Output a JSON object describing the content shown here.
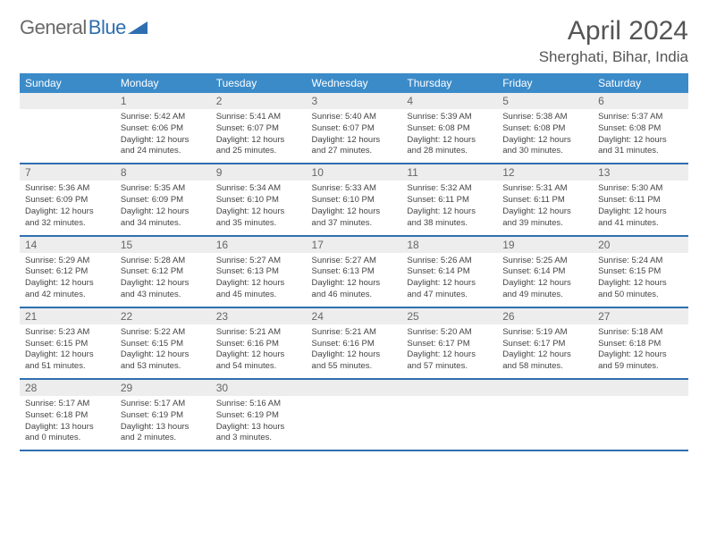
{
  "brand": {
    "part1": "General",
    "part2": "Blue",
    "triangle_color": "#2f6fb0"
  },
  "colors": {
    "header_bg": "#3b8bc9",
    "header_text": "#ffffff",
    "row_divider": "#2f6fb0",
    "daynum_bg": "#ededed",
    "daynum_text": "#666666",
    "body_text": "#444444",
    "title_text": "#555555",
    "page_bg": "#ffffff"
  },
  "title": "April 2024",
  "location": "Sherghati, Bihar, India",
  "weekdays": [
    "Sunday",
    "Monday",
    "Tuesday",
    "Wednesday",
    "Thursday",
    "Friday",
    "Saturday"
  ],
  "weeks": [
    [
      {
        "n": "",
        "lines": []
      },
      {
        "n": "1",
        "lines": [
          "Sunrise: 5:42 AM",
          "Sunset: 6:06 PM",
          "Daylight: 12 hours and 24 minutes."
        ]
      },
      {
        "n": "2",
        "lines": [
          "Sunrise: 5:41 AM",
          "Sunset: 6:07 PM",
          "Daylight: 12 hours and 25 minutes."
        ]
      },
      {
        "n": "3",
        "lines": [
          "Sunrise: 5:40 AM",
          "Sunset: 6:07 PM",
          "Daylight: 12 hours and 27 minutes."
        ]
      },
      {
        "n": "4",
        "lines": [
          "Sunrise: 5:39 AM",
          "Sunset: 6:08 PM",
          "Daylight: 12 hours and 28 minutes."
        ]
      },
      {
        "n": "5",
        "lines": [
          "Sunrise: 5:38 AM",
          "Sunset: 6:08 PM",
          "Daylight: 12 hours and 30 minutes."
        ]
      },
      {
        "n": "6",
        "lines": [
          "Sunrise: 5:37 AM",
          "Sunset: 6:08 PM",
          "Daylight: 12 hours and 31 minutes."
        ]
      }
    ],
    [
      {
        "n": "7",
        "lines": [
          "Sunrise: 5:36 AM",
          "Sunset: 6:09 PM",
          "Daylight: 12 hours and 32 minutes."
        ]
      },
      {
        "n": "8",
        "lines": [
          "Sunrise: 5:35 AM",
          "Sunset: 6:09 PM",
          "Daylight: 12 hours and 34 minutes."
        ]
      },
      {
        "n": "9",
        "lines": [
          "Sunrise: 5:34 AM",
          "Sunset: 6:10 PM",
          "Daylight: 12 hours and 35 minutes."
        ]
      },
      {
        "n": "10",
        "lines": [
          "Sunrise: 5:33 AM",
          "Sunset: 6:10 PM",
          "Daylight: 12 hours and 37 minutes."
        ]
      },
      {
        "n": "11",
        "lines": [
          "Sunrise: 5:32 AM",
          "Sunset: 6:11 PM",
          "Daylight: 12 hours and 38 minutes."
        ]
      },
      {
        "n": "12",
        "lines": [
          "Sunrise: 5:31 AM",
          "Sunset: 6:11 PM",
          "Daylight: 12 hours and 39 minutes."
        ]
      },
      {
        "n": "13",
        "lines": [
          "Sunrise: 5:30 AM",
          "Sunset: 6:11 PM",
          "Daylight: 12 hours and 41 minutes."
        ]
      }
    ],
    [
      {
        "n": "14",
        "lines": [
          "Sunrise: 5:29 AM",
          "Sunset: 6:12 PM",
          "Daylight: 12 hours and 42 minutes."
        ]
      },
      {
        "n": "15",
        "lines": [
          "Sunrise: 5:28 AM",
          "Sunset: 6:12 PM",
          "Daylight: 12 hours and 43 minutes."
        ]
      },
      {
        "n": "16",
        "lines": [
          "Sunrise: 5:27 AM",
          "Sunset: 6:13 PM",
          "Daylight: 12 hours and 45 minutes."
        ]
      },
      {
        "n": "17",
        "lines": [
          "Sunrise: 5:27 AM",
          "Sunset: 6:13 PM",
          "Daylight: 12 hours and 46 minutes."
        ]
      },
      {
        "n": "18",
        "lines": [
          "Sunrise: 5:26 AM",
          "Sunset: 6:14 PM",
          "Daylight: 12 hours and 47 minutes."
        ]
      },
      {
        "n": "19",
        "lines": [
          "Sunrise: 5:25 AM",
          "Sunset: 6:14 PM",
          "Daylight: 12 hours and 49 minutes."
        ]
      },
      {
        "n": "20",
        "lines": [
          "Sunrise: 5:24 AM",
          "Sunset: 6:15 PM",
          "Daylight: 12 hours and 50 minutes."
        ]
      }
    ],
    [
      {
        "n": "21",
        "lines": [
          "Sunrise: 5:23 AM",
          "Sunset: 6:15 PM",
          "Daylight: 12 hours and 51 minutes."
        ]
      },
      {
        "n": "22",
        "lines": [
          "Sunrise: 5:22 AM",
          "Sunset: 6:15 PM",
          "Daylight: 12 hours and 53 minutes."
        ]
      },
      {
        "n": "23",
        "lines": [
          "Sunrise: 5:21 AM",
          "Sunset: 6:16 PM",
          "Daylight: 12 hours and 54 minutes."
        ]
      },
      {
        "n": "24",
        "lines": [
          "Sunrise: 5:21 AM",
          "Sunset: 6:16 PM",
          "Daylight: 12 hours and 55 minutes."
        ]
      },
      {
        "n": "25",
        "lines": [
          "Sunrise: 5:20 AM",
          "Sunset: 6:17 PM",
          "Daylight: 12 hours and 57 minutes."
        ]
      },
      {
        "n": "26",
        "lines": [
          "Sunrise: 5:19 AM",
          "Sunset: 6:17 PM",
          "Daylight: 12 hours and 58 minutes."
        ]
      },
      {
        "n": "27",
        "lines": [
          "Sunrise: 5:18 AM",
          "Sunset: 6:18 PM",
          "Daylight: 12 hours and 59 minutes."
        ]
      }
    ],
    [
      {
        "n": "28",
        "lines": [
          "Sunrise: 5:17 AM",
          "Sunset: 6:18 PM",
          "Daylight: 13 hours and 0 minutes."
        ]
      },
      {
        "n": "29",
        "lines": [
          "Sunrise: 5:17 AM",
          "Sunset: 6:19 PM",
          "Daylight: 13 hours and 2 minutes."
        ]
      },
      {
        "n": "30",
        "lines": [
          "Sunrise: 5:16 AM",
          "Sunset: 6:19 PM",
          "Daylight: 13 hours and 3 minutes."
        ]
      },
      {
        "n": "",
        "lines": []
      },
      {
        "n": "",
        "lines": []
      },
      {
        "n": "",
        "lines": []
      },
      {
        "n": "",
        "lines": []
      }
    ]
  ]
}
